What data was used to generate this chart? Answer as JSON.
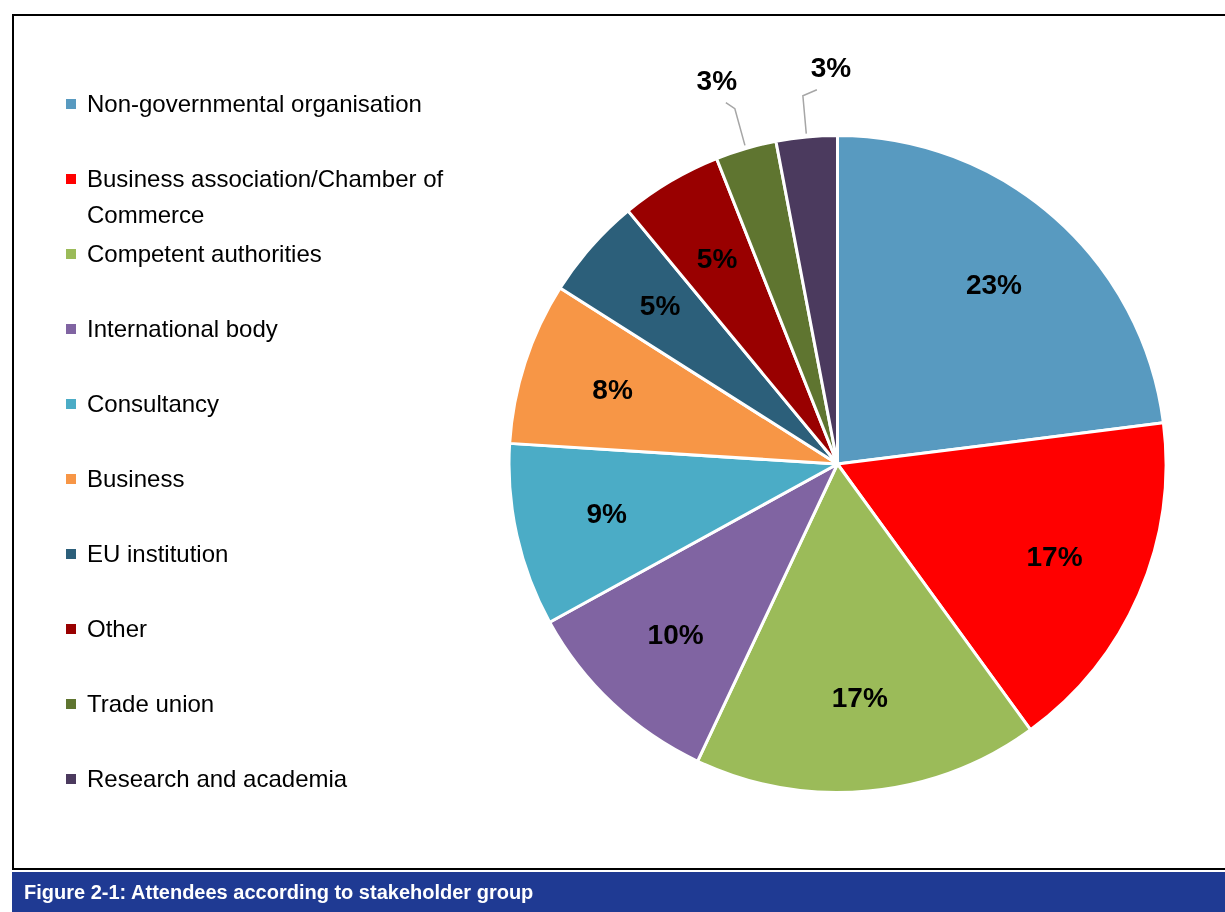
{
  "chart_data": {
    "type": "pie",
    "title": "Figure 2-1:  Attendees according to stakeholder group",
    "categories": [
      "Non-governmental organisation",
      "Business association/Chamber of Commerce",
      "Competent authorities",
      "International body",
      "Consultancy",
      "Business",
      "EU institution",
      "Other",
      "Trade union",
      "Research and academia"
    ],
    "values": [
      23,
      17,
      17,
      10,
      9,
      8,
      5,
      5,
      3,
      3
    ],
    "colors": [
      "#589ac0",
      "#ff0000",
      "#9bbb59",
      "#8064a2",
      "#4bacc6",
      "#f79646",
      "#2c5f7a",
      "#990000",
      "#5f7530",
      "#4b3a5e"
    ],
    "value_labels": [
      "23%",
      "17%",
      "17%",
      "10%",
      "9%",
      "8%",
      "5%",
      "5%",
      "3%",
      "3%"
    ],
    "legend": "left"
  }
}
